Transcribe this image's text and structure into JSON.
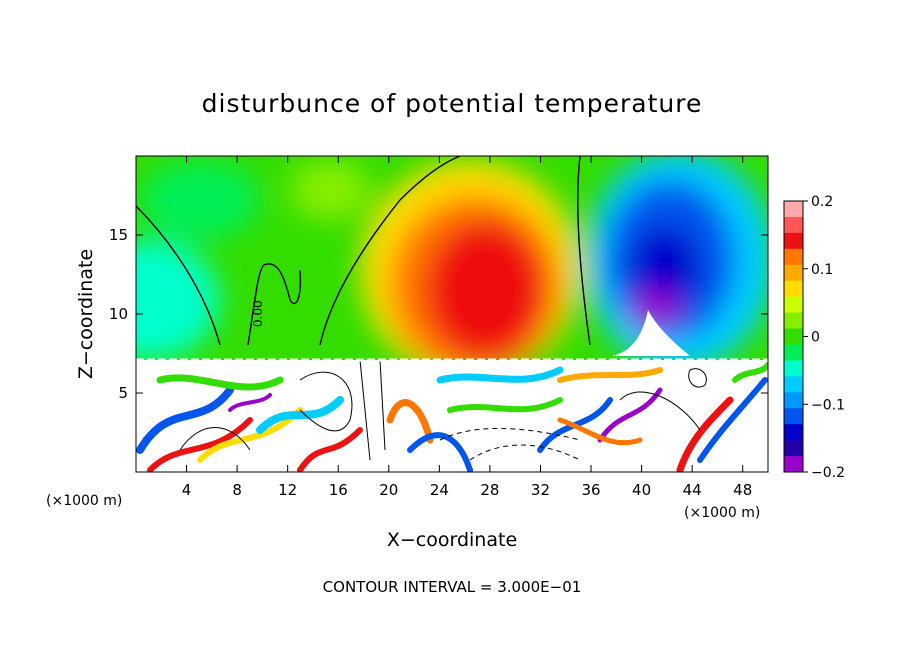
{
  "chart_data": {
    "type": "heatmap",
    "title": "disturbunce of potential temperature",
    "xlabel": "X−coordinate",
    "ylabel": "Z−coordinate",
    "x_unit_left": "(×1000 m)",
    "x_unit_right": "(×1000 m)",
    "xlim": [
      0,
      50
    ],
    "ylim": [
      0,
      20
    ],
    "x_ticks": [
      4,
      8,
      12,
      16,
      20,
      24,
      28,
      32,
      36,
      40,
      44,
      48
    ],
    "y_ticks": [
      5,
      10,
      15
    ],
    "colorbar": {
      "ticks": [
        0.2,
        0.1,
        0,
        -0.1,
        -0.2
      ],
      "tick_labels": [
        "0.2",
        "0.1",
        "0",
        "−0.1",
        "−0.2"
      ],
      "range": [
        -0.2,
        0.2
      ],
      "colors": [
        "#ffaaaa",
        "#ff5555",
        "#ee1111",
        "#ff7700",
        "#ffaa00",
        "#ffdd00",
        "#ccff00",
        "#88ee00",
        "#33dd00",
        "#00ee55",
        "#00ffcc",
        "#00ccff",
        "#0099ff",
        "#0055ee",
        "#0000cc",
        "#2200aa",
        "#9900cc"
      ]
    },
    "contour_label": "0.00",
    "annotation": "CONTOUR INTERVAL = 3.000E−01",
    "features": [
      {
        "name": "warm anomaly",
        "x": 28,
        "z": 12,
        "value": 0.15
      },
      {
        "name": "cold anomaly",
        "x": 41,
        "z": 13,
        "value": -0.15
      }
    ]
  }
}
